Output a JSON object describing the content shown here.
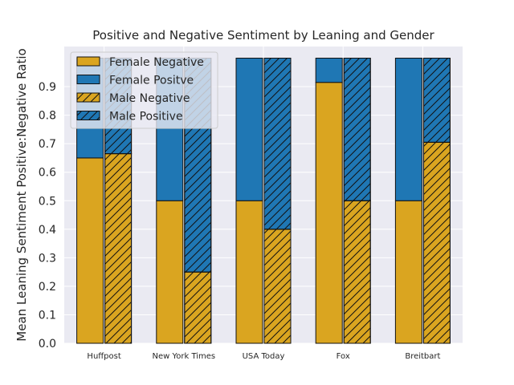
{
  "chart_data": {
    "type": "bar",
    "title": "Positive and Negative Sentiment by Leaning and Gender",
    "xlabel": "",
    "ylabel": "Mean Leaning Sentiment Positive:Negative Ratio",
    "ylim": [
      0,
      1.0
    ],
    "yticks": [
      0.0,
      0.1,
      0.2,
      0.3,
      0.4,
      0.5,
      0.6,
      0.7,
      0.8,
      0.9
    ],
    "grid": true,
    "legend_position": "upper-left",
    "categories": [
      "Huffpost",
      "New York Times",
      "USA Today",
      "Fox",
      "Breitbart"
    ],
    "series": [
      {
        "name": "Female Negative",
        "group": "female",
        "part": "negative",
        "values": [
          0.65,
          0.5,
          0.5,
          0.915,
          0.5
        ],
        "color": "#DAA520",
        "hatch": false
      },
      {
        "name": "Female Positve",
        "group": "female",
        "part": "positive",
        "values": [
          0.35,
          0.5,
          0.5,
          0.085,
          0.5
        ],
        "color": "#1F77B4",
        "hatch": false
      },
      {
        "name": "Male Negative",
        "group": "male",
        "part": "negative",
        "values": [
          0.665,
          0.25,
          0.4,
          0.5,
          0.705
        ],
        "color": "#DAA520",
        "hatch": true
      },
      {
        "name": "Male Positive",
        "group": "male",
        "part": "positive",
        "values": [
          0.335,
          0.75,
          0.6,
          0.5,
          0.295
        ],
        "color": "#1F77B4",
        "hatch": true
      }
    ]
  }
}
